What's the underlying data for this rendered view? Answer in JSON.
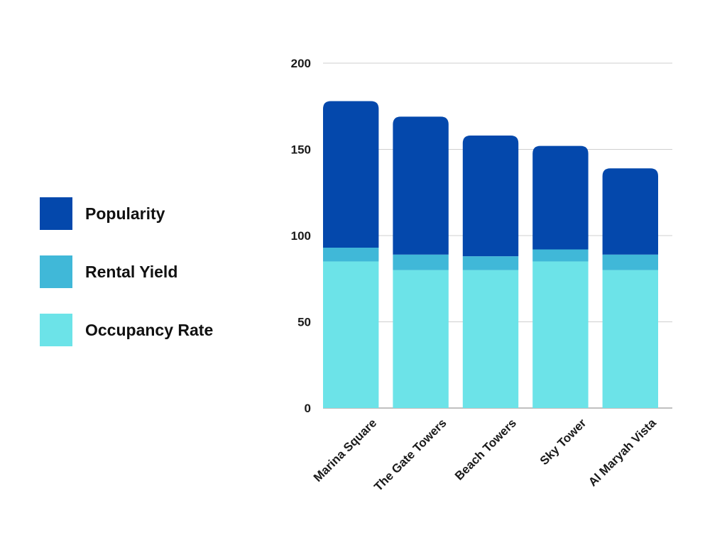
{
  "chart_data": {
    "type": "bar",
    "stacked": true,
    "title": "",
    "xlabel": "",
    "ylabel": "",
    "ylim": [
      0,
      200
    ],
    "yticks": [
      0,
      50,
      100,
      150,
      200
    ],
    "categories": [
      "Marina Square",
      "The Gate Towers",
      "Beach Towers",
      "Sky Tower",
      "Al Maryah Vista"
    ],
    "series": [
      {
        "name": "Occupancy Rate",
        "color": "#6ce3e8",
        "values": [
          85,
          80,
          80,
          85,
          80
        ]
      },
      {
        "name": "Rental Yield",
        "color": "#40b8d8",
        "values": [
          8,
          9,
          8,
          7,
          9
        ]
      },
      {
        "name": "Popularity",
        "color": "#0448ac",
        "values": [
          85,
          80,
          70,
          60,
          50
        ]
      }
    ],
    "legend": {
      "position": "left",
      "order": [
        "Popularity",
        "Rental Yield",
        "Occupancy Rate"
      ]
    },
    "grid": true
  }
}
